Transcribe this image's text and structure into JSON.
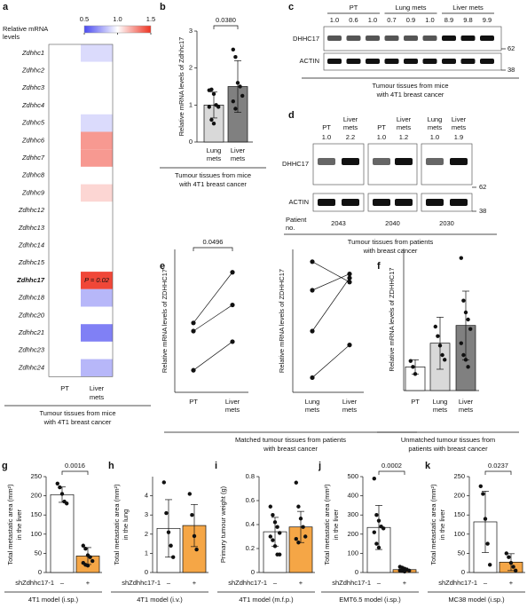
{
  "chart_data": [
    {
      "panel": "a",
      "type": "heatmap",
      "colorbar_title": [
        "Relative mRNA",
        "levels"
      ],
      "clim": [
        0.5,
        1.5
      ],
      "colorbar_ticks": [
        0.5,
        {
          "value": 1,
          "label": "1.0"
        },
        1.5
      ],
      "colors": [
        "#4a4af0",
        "#ffffff",
        "#ee3322"
      ],
      "x": [
        [
          "PT"
        ],
        [
          "Liver",
          "mets"
        ]
      ],
      "y": [
        "Zdhhc1",
        "Zdhhc2",
        "Zdhhc3",
        "Zdhhc4",
        "Zdhhc5",
        "Zdhhc6",
        "Zdhhc7",
        "Zdhhc8",
        "Zdhhc9",
        "Zdhhc12",
        "Zdhhc13",
        "Zdhhc14",
        "Zdhhc15",
        "Zdhhc17",
        "Zdhhc18",
        "Zdhhc20",
        "Zdhhc21",
        "Zdhhc23",
        "Zdhhc24"
      ],
      "values": [
        [
          1,
          0.9
        ],
        [
          1,
          1
        ],
        [
          1,
          1
        ],
        [
          1,
          1
        ],
        [
          1,
          0.9
        ],
        [
          1,
          1.25
        ],
        [
          1,
          1.25
        ],
        [
          1,
          1
        ],
        [
          1,
          1.1
        ],
        [
          1,
          1
        ],
        [
          1,
          1
        ],
        [
          1,
          1
        ],
        [
          1,
          1
        ],
        [
          1,
          1.45
        ],
        [
          1,
          0.8
        ],
        [
          1,
          1
        ],
        [
          1,
          0.65
        ],
        [
          1,
          1
        ],
        [
          1,
          0.8
        ]
      ],
      "annotation": {
        "text": "P = 0.02",
        "row": "Zdhhc17",
        "column": "Liver mets"
      },
      "footer": [
        "Tumour tissues from mice",
        "with 4T1 breast cancer"
      ]
    },
    {
      "panel": "b",
      "type": "bar",
      "ylabel": [
        "Relative mRNA levels of Zdhhc17"
      ],
      "categories": [
        [
          "Lung",
          "mets"
        ],
        [
          "Liver",
          "mets"
        ]
      ],
      "values": [
        1.0,
        1.5
      ],
      "errors": [
        0.35,
        0.7
      ],
      "points": [
        [
          1.4,
          1.42,
          1.3,
          1.0,
          0.95,
          0.95,
          0.6,
          0.5
        ],
        [
          2.5,
          2.3,
          1.6,
          1.5,
          1.25,
          1.1,
          0.9
        ]
      ],
      "colors": [
        "#d9d9d9",
        "#808080"
      ],
      "ylim": [
        0,
        3
      ],
      "yticks": [
        0,
        1,
        2,
        3
      ],
      "p_value": "0.0380",
      "footer": [
        "Tumour tissues from mice",
        "with 4T1 breast cancer"
      ]
    },
    {
      "panel": "e",
      "type": "paired",
      "ylabel": [
        "Relative mRNA levels of ZDHHC17"
      ],
      "categories": [
        [
          "PT"
        ],
        [
          "Liver",
          "mets"
        ]
      ],
      "values": [
        [
          1.1,
          1.72
        ],
        [
          1.0,
          1.32
        ],
        [
          0.52,
          0.87
        ]
      ],
      "ylim": [
        0.25,
        2
      ],
      "p_value": "0.0496",
      "footer": [
        "Matched tumour tissues from patients",
        "with breast cancer"
      ]
    },
    {
      "type": "paired",
      "ylabel": [
        "Relative mRNA levels of ZDHHC17"
      ],
      "categories": [
        [
          "Lung",
          "mets"
        ],
        [
          "Liver",
          "mets"
        ]
      ],
      "values": [
        [
          1.85,
          1.6
        ],
        [
          1.5,
          1.7
        ],
        [
          1.0,
          1.65
        ],
        [
          0.43,
          0.83
        ]
      ],
      "ylim": [
        0.25,
        2
      ]
    },
    {
      "panel": "f",
      "type": "bar",
      "ylabel": [
        "Relative mRNA levels of ZDHHC17"
      ],
      "categories": [
        [
          "PT"
        ],
        [
          "Lung",
          "mets"
        ],
        [
          "Liver",
          "mets"
        ]
      ],
      "values": [
        1.0,
        2.0,
        2.75
      ],
      "errors": [
        0.3,
        1.1,
        1.45
      ],
      "points": [
        [
          1.25,
          1.0,
          0.7
        ],
        [
          2.7,
          2.3,
          1.9,
          1.5,
          1.3
        ],
        [
          5.6,
          3.8,
          3.3,
          3.0,
          2.6,
          2.0,
          1.5,
          1.3,
          1.0
        ]
      ],
      "colors": [
        "#ffffff",
        "#d9d9d9",
        "#808080"
      ],
      "ylim": [
        0,
        6
      ],
      "footer": [
        "Unmatched tumour tissues from",
        "patients with breast cancer"
      ]
    },
    {
      "panel": "g",
      "type": "bar",
      "ylabel": [
        "Total metastatic area (mm²)",
        "in the liver"
      ],
      "xlabel": "shZdhhc17-1",
      "categories": [
        [
          "–"
        ],
        [
          "+"
        ]
      ],
      "values": [
        203,
        43
      ],
      "errors": [
        20,
        22
      ],
      "points": [
        [
          232,
          222,
          205,
          185,
          180
        ],
        [
          70,
          62,
          45,
          40,
          30,
          25,
          20,
          18
        ]
      ],
      "colors": [
        "#ffffff",
        "#f5a646"
      ],
      "ylim": [
        0,
        250
      ],
      "yticks": [
        0,
        50,
        100,
        150,
        200,
        250
      ],
      "p_value": "0.0016",
      "footer": [
        "4T1 model (i.sp.)"
      ]
    },
    {
      "panel": "h",
      "type": "bar",
      "ylabel": [
        "Total metastatic area (mm²)",
        "in the lung"
      ],
      "xlabel": "shZdhhc17-1",
      "categories": [
        [
          "–"
        ],
        [
          "+"
        ]
      ],
      "values": [
        2.3,
        2.45
      ],
      "errors": [
        1.5,
        1.1
      ],
      "points": [
        [
          4.7,
          3.1,
          2.1,
          1.4,
          0.8
        ],
        [
          4.1,
          3.0,
          1.9,
          1.2
        ]
      ],
      "colors": [
        "#ffffff",
        "#f5a646"
      ],
      "ylim": [
        0,
        5
      ],
      "yticks": [
        0,
        1,
        2,
        3,
        4
      ],
      "footer": [
        "4T1 model (i.v.)"
      ]
    },
    {
      "panel": "i",
      "type": "bar",
      "ylabel": [
        "Primary tumour weight (g)"
      ],
      "xlabel": "shZdhhc17-1",
      "categories": [
        [
          "–"
        ],
        [
          "+"
        ]
      ],
      "values": [
        0.34,
        0.38
      ],
      "errors": [
        0.12,
        0.13
      ],
      "points": [
        [
          0.55,
          0.48,
          0.42,
          0.38,
          0.33,
          0.3,
          0.27,
          0.22,
          0.15,
          0.15
        ],
        [
          0.75,
          0.55,
          0.45,
          0.38,
          0.3,
          0.28,
          0.25
        ]
      ],
      "colors": [
        "#ffffff",
        "#f5a646"
      ],
      "ylim": [
        0,
        0.8
      ],
      "yticks": [
        0,
        0.2,
        0.4,
        0.6,
        0.8
      ],
      "footer": [
        "4T1 model (m.f.p.)"
      ]
    },
    {
      "panel": "j",
      "type": "bar",
      "ylabel": [
        "Total metastatic area (mm²)",
        "in the liver"
      ],
      "xlabel": "shZdhhc17-1",
      "categories": [
        [
          "–"
        ],
        [
          "+"
        ]
      ],
      "values": [
        235,
        15
      ],
      "errors": [
        115,
        8
      ],
      "points": [
        [
          490,
          300,
          270,
          240,
          230,
          210,
          150,
          130
        ],
        [
          30,
          25,
          20,
          15,
          10,
          10,
          8,
          5
        ]
      ],
      "colors": [
        "#ffffff",
        "#f5a646"
      ],
      "ylim": [
        0,
        500
      ],
      "yticks": [
        0,
        100,
        200,
        300,
        400,
        500
      ],
      "p_value": "0.0002",
      "footer": [
        "EMT6.5 model (i.sp.)"
      ]
    },
    {
      "panel": "k",
      "type": "bar",
      "ylabel": [
        "Total metastatic area (mm²)",
        "in the liver"
      ],
      "xlabel": "shZdhhc17-1",
      "categories": [
        [
          "–"
        ],
        [
          "+"
        ]
      ],
      "values": [
        132,
        27
      ],
      "errors": [
        80,
        22
      ],
      "points": [
        [
          225,
          205,
          140,
          75,
          20
        ],
        [
          50,
          40,
          25,
          15,
          5
        ]
      ],
      "colors": [
        "#ffffff",
        "#f5a646"
      ],
      "ylim": [
        0,
        250
      ],
      "yticks": [
        0,
        50,
        100,
        150,
        200,
        250
      ],
      "p_value": "0.0237",
      "footer": [
        "MC38 model (i.sp.)"
      ]
    }
  ],
  "blots": [
    {
      "panel": "c",
      "groups": [
        {
          "label": "PT",
          "values": [
            "1.0",
            "0.6",
            "1.0"
          ]
        },
        {
          "label": "Lung mets",
          "values": [
            "0.7",
            "0.9",
            "1.0"
          ]
        },
        {
          "label": "Liver mets",
          "values": [
            "8.9",
            "9.8",
            "9.9"
          ]
        }
      ],
      "rows": [
        "DHHC17",
        "ACTIN"
      ],
      "markers": [
        "62",
        "38"
      ],
      "footer": [
        "Tumour tissues from mice",
        "with 4T1 breast cancer"
      ]
    },
    {
      "panel": "d",
      "membranes": [
        {
          "lanes": [
            {
              "label": [
                "PT"
              ],
              "value": "1.0"
            },
            {
              "label": [
                "Liver",
                "mets"
              ],
              "value": "2.2"
            }
          ],
          "patient": "2043"
        },
        {
          "lanes": [
            {
              "label": [
                "PT"
              ],
              "value": "1.0"
            },
            {
              "label": [
                "Liver",
                "mets"
              ],
              "value": "1.2"
            }
          ],
          "patient": "2040"
        },
        {
          "lanes": [
            {
              "label": [
                "Lung",
                "mets"
              ],
              "value": "1.0"
            },
            {
              "label": [
                "Liver",
                "mets"
              ],
              "value": "1.9"
            }
          ],
          "patient": "2030"
        }
      ],
      "rows": [
        "DHHC17",
        "ACTIN"
      ],
      "markers": [
        "62",
        "38"
      ],
      "patient_label": [
        "Patient",
        "no."
      ],
      "footer": [
        "Tumour tissues from patients",
        "with breast cancer"
      ]
    }
  ]
}
